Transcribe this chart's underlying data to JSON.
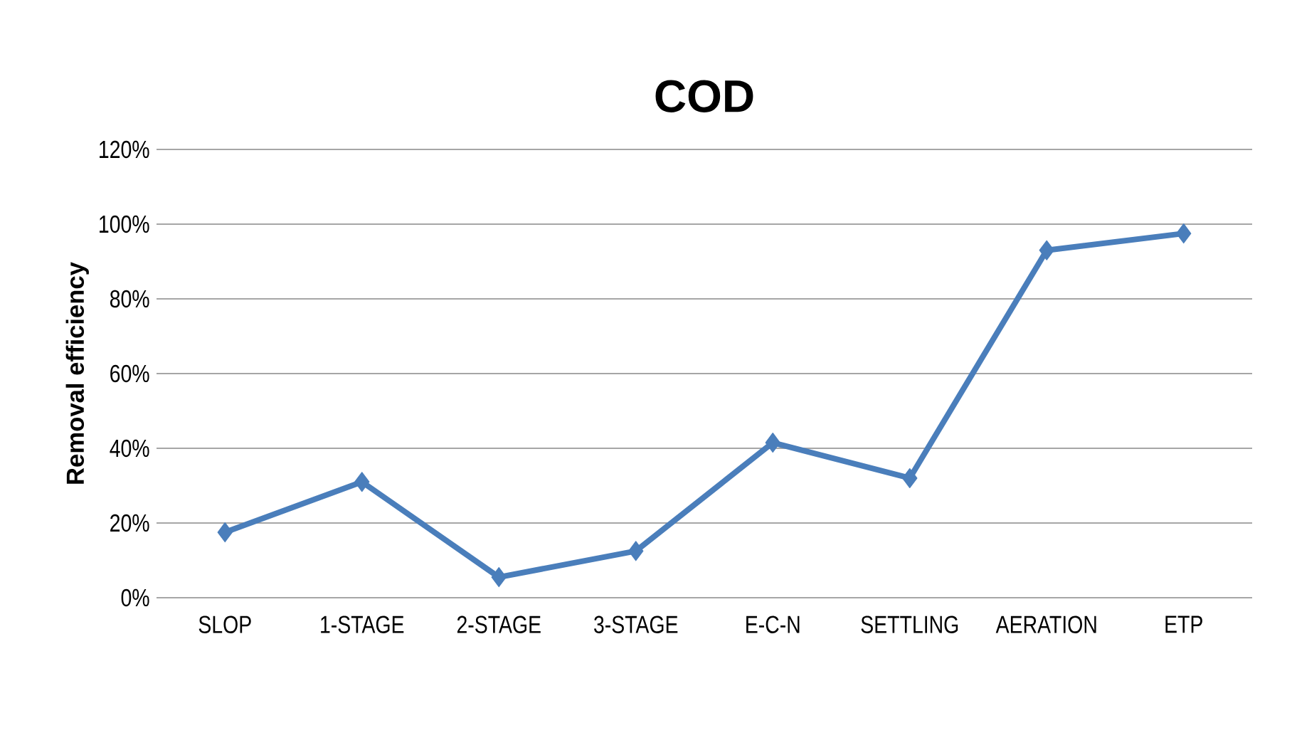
{
  "chart_data": {
    "type": "line",
    "title": "COD",
    "ylabel": "Removal efficiency",
    "categories": [
      "SLOP",
      "1-STAGE",
      "2-STAGE",
      "3-STAGE",
      "E-C-N",
      "SETTLING",
      "AERATION",
      "ETP"
    ],
    "series": [
      {
        "color": "#4a7ebb",
        "values": [
          17.5,
          31,
          5.5,
          12.5,
          41.5,
          32,
          93,
          97.5
        ]
      }
    ],
    "ylim": [
      0,
      120
    ],
    "yticks": [
      {
        "value": 0,
        "label": "0%"
      },
      {
        "value": 20,
        "label": "20%"
      },
      {
        "value": 40,
        "label": "40%"
      },
      {
        "value": 60,
        "label": "60%"
      },
      {
        "value": 80,
        "label": "80%"
      },
      {
        "value": 100,
        "label": "100%"
      },
      {
        "value": 120,
        "label": "120%"
      }
    ],
    "grid": "y",
    "marker": "diamond",
    "line_style": "solid"
  }
}
